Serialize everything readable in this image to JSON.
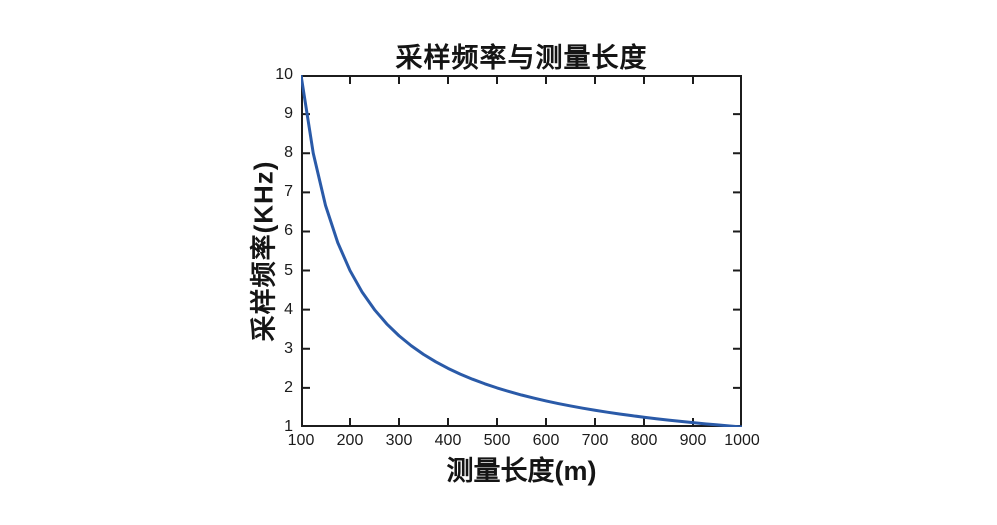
{
  "chart_data": {
    "type": "line",
    "title": "采样频率与测量长度",
    "xlabel": "测量长度(m)",
    "ylabel": "采样频率(KHz)",
    "xlim": [
      100,
      1000
    ],
    "ylim": [
      1,
      10
    ],
    "xticks": [
      100,
      200,
      300,
      400,
      500,
      600,
      700,
      800,
      900,
      1000
    ],
    "yticks": [
      1,
      2,
      3,
      4,
      5,
      6,
      7,
      8,
      9,
      10
    ],
    "grid": false,
    "legend": false,
    "frame": "box-with-inward-ticks",
    "series": [
      {
        "x": [
          100,
          125,
          150,
          175,
          200,
          225,
          250,
          275,
          300,
          325,
          350,
          375,
          400,
          425,
          450,
          475,
          500,
          525,
          550,
          575,
          600,
          625,
          650,
          675,
          700,
          725,
          750,
          775,
          800,
          825,
          850,
          875,
          900,
          925,
          950,
          975,
          1000
        ],
        "y": [
          10,
          8,
          6.667,
          5.714,
          5,
          4.444,
          4,
          3.636,
          3.333,
          3.077,
          2.857,
          2.667,
          2.5,
          2.353,
          2.222,
          2.105,
          2,
          1.905,
          1.818,
          1.739,
          1.667,
          1.6,
          1.538,
          1.481,
          1.429,
          1.379,
          1.333,
          1.29,
          1.25,
          1.212,
          1.176,
          1.143,
          1.111,
          1.081,
          1.053,
          1.026,
          1
        ],
        "color": "#2a5aa8",
        "line_width": 3
      }
    ],
    "colors": {
      "curve": "#2a5aa8",
      "axis": "#1c1c1c",
      "text": "#151515",
      "background": "#ffffff"
    }
  }
}
